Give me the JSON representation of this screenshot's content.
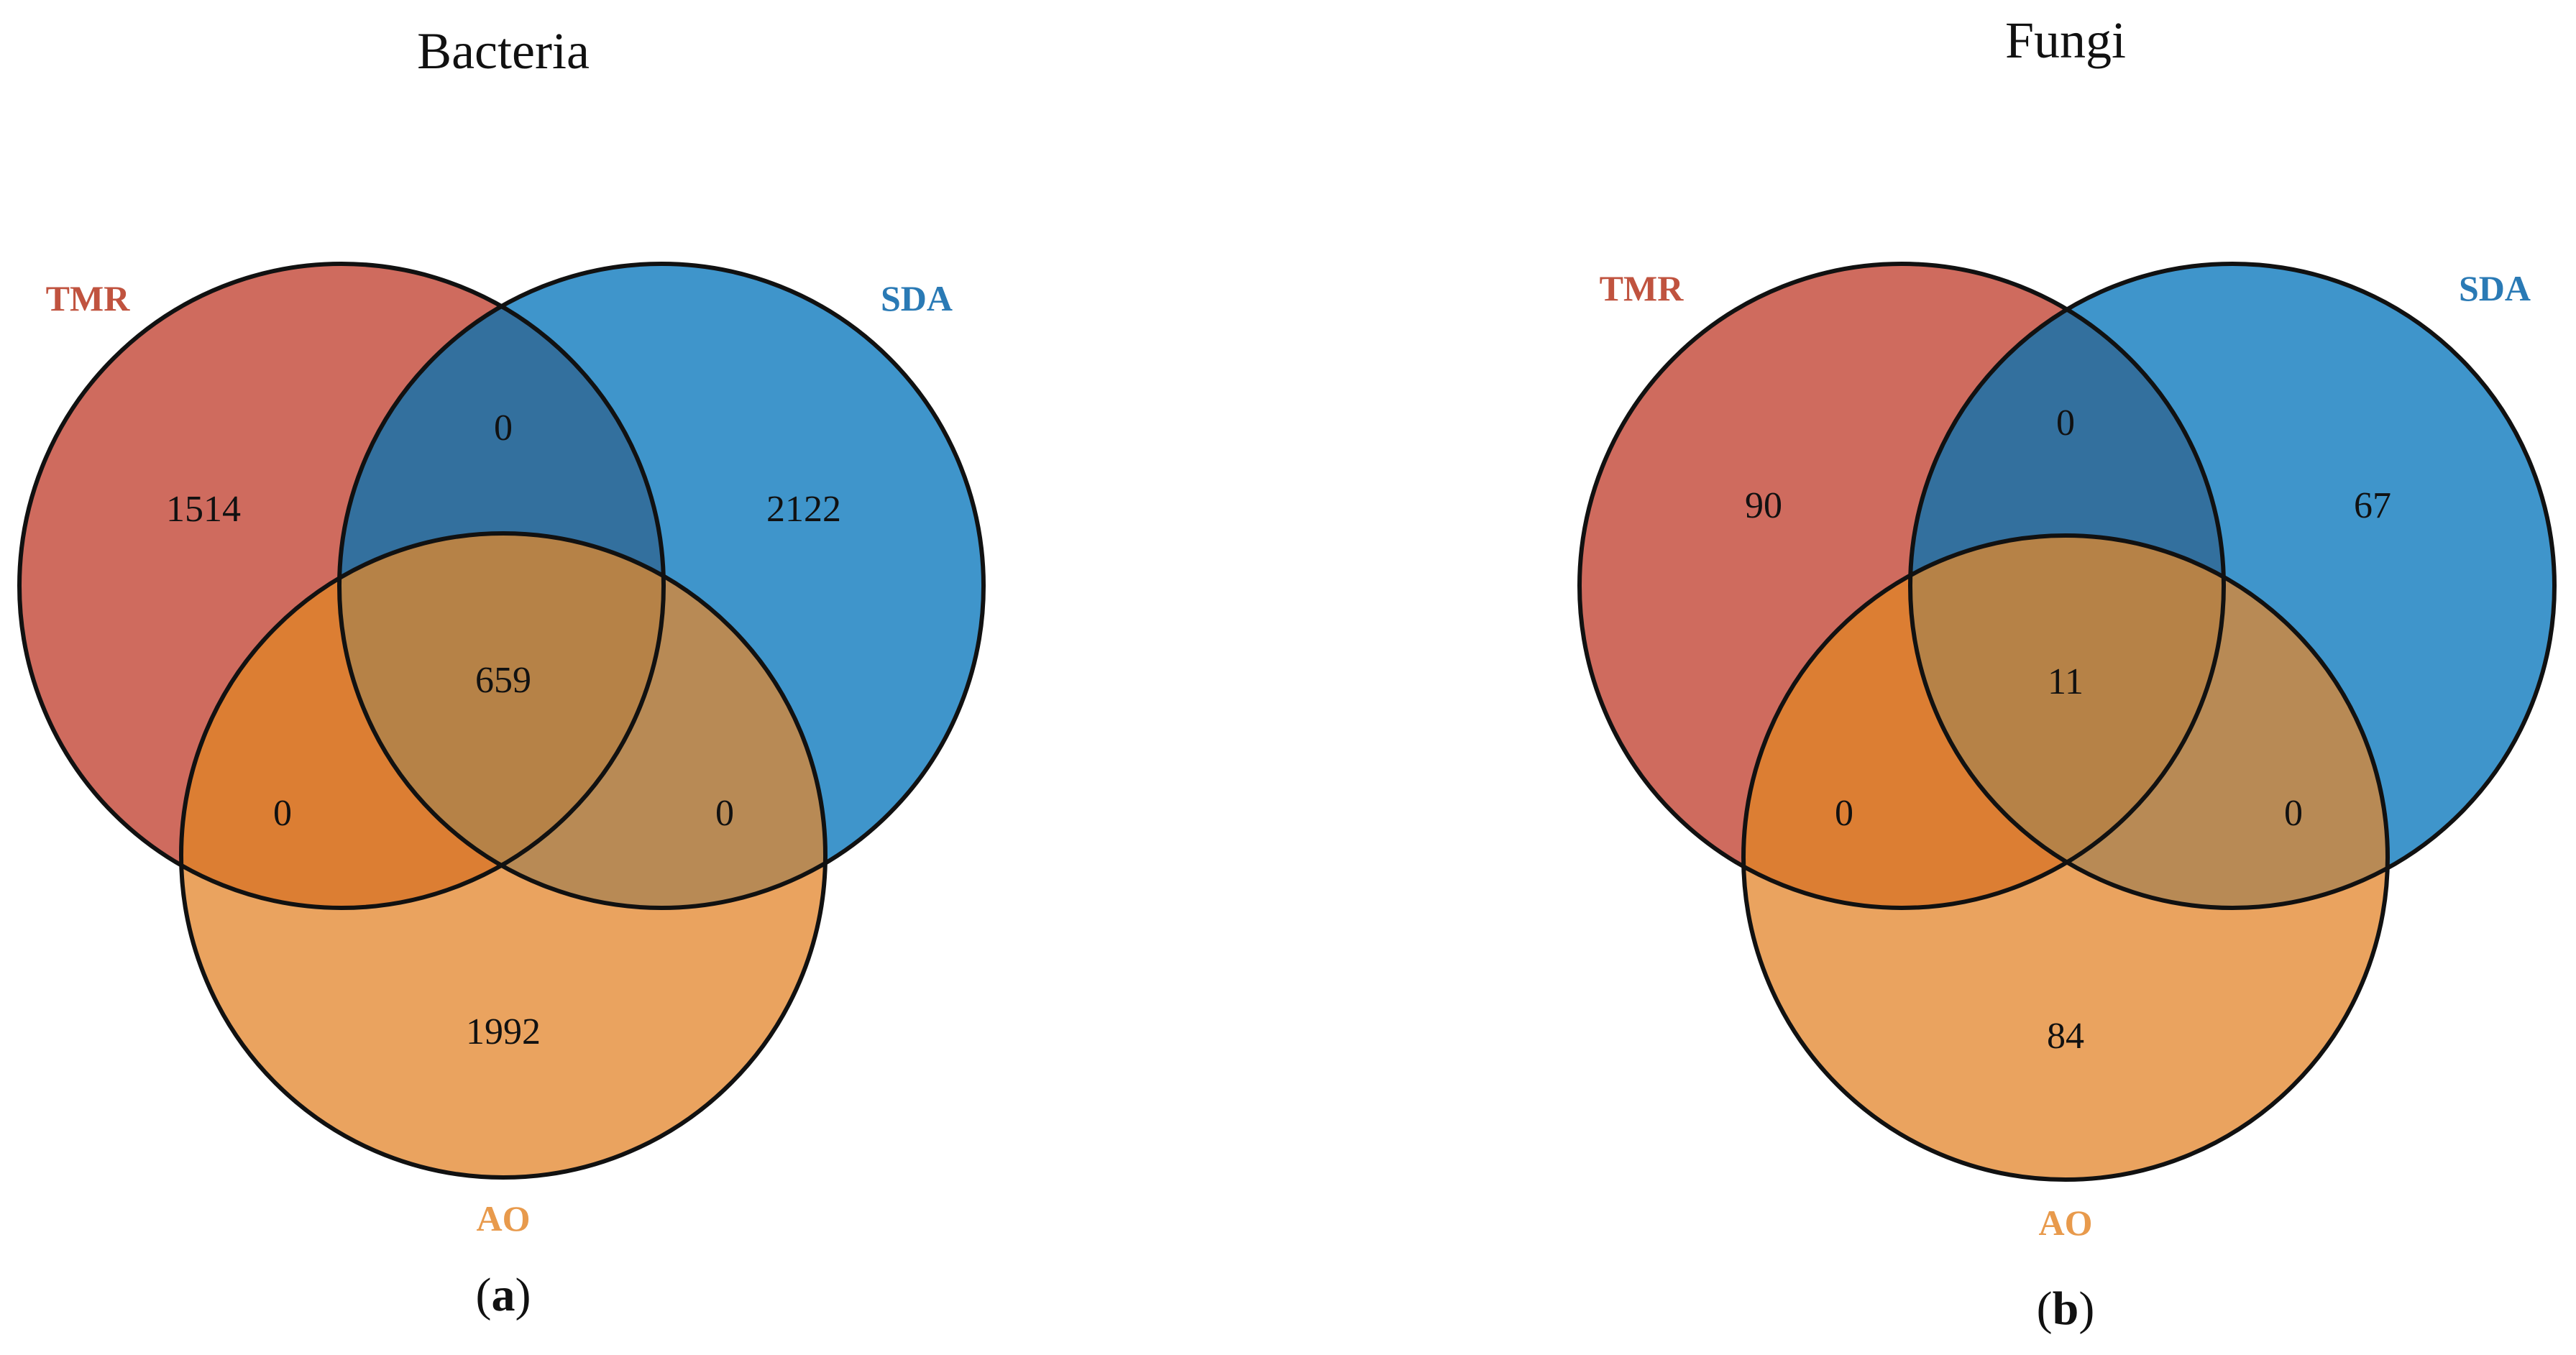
{
  "colors": {
    "tmr": "#cf6b5e",
    "sda": "#3f95cb",
    "ao": "#eaa35f",
    "tmr_sda": "#33709e",
    "tmr_ao": "#dc7e33",
    "sda_ao": "#b88a55",
    "all": "#b68247",
    "tmr_label": "#c0533f",
    "sda_label": "#2a7ab5",
    "ao_label": "#e89a4c"
  },
  "diagrams": [
    {
      "title": "Bacteria",
      "caption_letter": "a",
      "sets": {
        "tmr": "TMR",
        "sda": "SDA",
        "ao": "AO"
      },
      "regions": {
        "tmr_only": "1514",
        "sda_only": "2122",
        "ao_only": "1992",
        "tmr_sda": "0",
        "tmr_ao": "0",
        "sda_ao": "0",
        "all": "659"
      }
    },
    {
      "title": "Fungi",
      "caption_letter": "b",
      "sets": {
        "tmr": "TMR",
        "sda": "SDA",
        "ao": "AO"
      },
      "regions": {
        "tmr_only": "90",
        "sda_only": "67",
        "ao_only": "84",
        "tmr_sda": "0",
        "tmr_ao": "0",
        "sda_ao": "0",
        "all": "11"
      }
    }
  ]
}
